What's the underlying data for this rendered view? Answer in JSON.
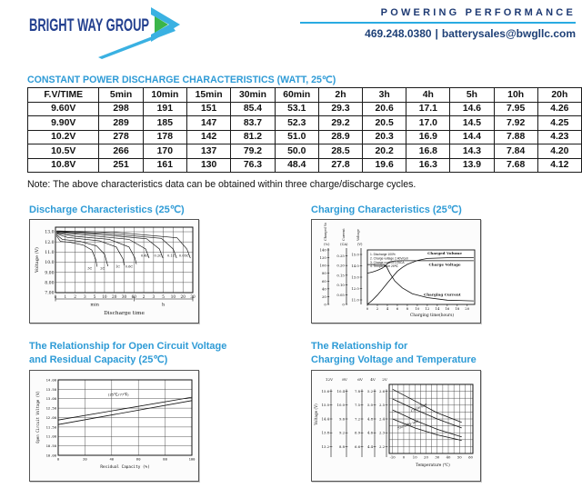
{
  "header": {
    "logo_text": "BRIGHT WAY GROUP",
    "tagline": "POWERING PERFORMANCE",
    "phone": "469.248.0380",
    "separator": "|",
    "email": "batterysales@bwgllc.com",
    "colors": {
      "navy": "#23408f",
      "cyan": "#29abe2",
      "green": "#3bb54a",
      "title_blue": "#2e9bd6"
    }
  },
  "table": {
    "title": "CONSTANT POWER DISCHARGE CHARACTERISTICS (WATT, 25℃)",
    "headers": [
      "F.V/TIME",
      "5min",
      "10min",
      "15min",
      "30min",
      "60min",
      "2h",
      "3h",
      "4h",
      "5h",
      "10h",
      "20h"
    ],
    "rows": [
      [
        "9.60V",
        "298",
        "191",
        "151",
        "85.4",
        "53.1",
        "29.3",
        "20.6",
        "17.1",
        "14.6",
        "7.95",
        "4.26"
      ],
      [
        "9.90V",
        "289",
        "185",
        "147",
        "83.7",
        "52.3",
        "29.2",
        "20.5",
        "17.0",
        "14.5",
        "7.92",
        "4.25"
      ],
      [
        "10.2V",
        "278",
        "178",
        "142",
        "81.2",
        "51.0",
        "28.9",
        "20.3",
        "16.9",
        "14.4",
        "7.88",
        "4.23"
      ],
      [
        "10.5V",
        "266",
        "170",
        "137",
        "79.2",
        "50.0",
        "28.5",
        "20.2",
        "16.8",
        "14.3",
        "7.84",
        "4.20"
      ],
      [
        "10.8V",
        "251",
        "161",
        "130",
        "76.3",
        "48.4",
        "27.8",
        "19.6",
        "16.3",
        "13.9",
        "7.68",
        "4.12"
      ]
    ],
    "note": "Note: The above characteristics data can be obtained within three charge/discharge cycles."
  },
  "chart_data": [
    {
      "id": "discharge",
      "type": "line",
      "title": "Discharge Characteristics (25℃)",
      "ylabel": "Voltage (V)",
      "xlabel": "Discharge time",
      "ylim": [
        7.0,
        13.45
      ],
      "y_values": [
        13,
        12,
        11,
        10,
        9,
        8,
        7
      ],
      "y_ticks": [
        "13.0",
        "12.0",
        "11.0",
        "10.0",
        "9.00",
        "8.00",
        "7.00"
      ],
      "x_ticks": [
        "0",
        "1",
        "2",
        "3",
        "5",
        "10",
        "20",
        "30",
        "60",
        "2",
        "3",
        "5",
        "10",
        "20",
        "30"
      ],
      "x_unit_groups": [
        {
          "label": "min",
          "from": 0,
          "to": 8
        },
        {
          "label": "h",
          "from": 8,
          "to": 14
        }
      ],
      "series": [
        {
          "name": "3C",
          "points": [
            [
              0.1,
              12.6
            ],
            [
              0.5,
              12.05
            ],
            [
              1.5,
              11.95
            ],
            [
              2.8,
              11.7
            ],
            [
              3.7,
              11.2
            ],
            [
              4.1,
              10.3
            ],
            [
              4.25,
              9.55
            ]
          ],
          "label_at": [
            3.5,
            9.3
          ]
        },
        {
          "name": "2C",
          "points": [
            [
              0.1,
              12.7
            ],
            [
              0.7,
              12.25
            ],
            [
              2.5,
              12.05
            ],
            [
              4.2,
              11.6
            ],
            [
              5.0,
              10.8
            ],
            [
              5.35,
              9.6
            ]
          ],
          "label_at": [
            4.8,
            9.3
          ]
        },
        {
          "name": "1C",
          "points": [
            [
              0.1,
              12.8
            ],
            [
              1.2,
              12.45
            ],
            [
              4.5,
              12.1
            ],
            [
              6.2,
              11.5
            ],
            [
              6.9,
              10.3
            ],
            [
              7.0,
              9.7
            ]
          ],
          "label_at": [
            6.35,
            9.45
          ]
        },
        {
          "name": "0.6C",
          "points": [
            [
              0.1,
              12.88
            ],
            [
              2,
              12.55
            ],
            [
              5.5,
              12.25
            ],
            [
              7.5,
              11.5
            ],
            [
              8.1,
              10.4
            ],
            [
              8.25,
              9.8
            ]
          ],
          "label_at": [
            7.5,
            9.45
          ]
        },
        {
          "name": "0.4C",
          "points": [
            [
              0.1,
              12.92
            ],
            [
              3,
              12.68
            ],
            [
              7.5,
              12.25
            ],
            [
              9.2,
              11.3
            ],
            [
              9.55,
              10.4
            ]
          ],
          "label_at": [
            9.1,
            10.52
          ]
        },
        {
          "name": "0.2C",
          "points": [
            [
              0.1,
              12.98
            ],
            [
              4,
              12.78
            ],
            [
              9.3,
              12.3
            ],
            [
              10.6,
              11.3
            ],
            [
              10.95,
              10.4
            ]
          ],
          "label_at": [
            10.45,
            10.52
          ]
        },
        {
          "name": "0.1C",
          "points": [
            [
              0.1,
              13.03
            ],
            [
              5,
              12.85
            ],
            [
              10.8,
              12.35
            ],
            [
              12.0,
              11.3
            ],
            [
              12.35,
              10.4
            ]
          ],
          "label_at": [
            11.8,
            10.52
          ]
        },
        {
          "name": "0.05C",
          "points": [
            [
              0.1,
              13.08
            ],
            [
              6,
              12.95
            ],
            [
              12.4,
              12.4
            ],
            [
              13.4,
              11.3
            ],
            [
              13.75,
              10.4
            ]
          ],
          "label_at": [
            13.1,
            10.52
          ]
        }
      ]
    },
    {
      "id": "charging",
      "type": "line",
      "title": "Charging Characteristics (25℃)",
      "xlabel": "Charging time(hours)",
      "x_ticks": [
        0,
        2,
        4,
        6,
        8,
        10,
        12,
        14,
        16,
        18,
        20
      ],
      "xlim": [
        0,
        21.5
      ],
      "axes": [
        {
          "label": "Charged Volume",
          "unit": "(%)",
          "scale": "pct",
          "ticks": [
            0,
            20,
            40,
            60,
            80,
            100,
            120,
            140
          ],
          "tick_labels": [
            "0",
            "20",
            "40",
            "60",
            "80",
            "100",
            "120",
            "140"
          ]
        },
        {
          "label": "Current",
          "unit": "(CA)",
          "scale": "ca",
          "ticks": [
            0,
            0.05,
            0.1,
            0.15,
            0.2,
            0.25
          ],
          "tick_labels": [
            "0",
            "0.05",
            "0.10",
            "0.15",
            "0.20",
            "0.25"
          ]
        },
        {
          "label": "Voltage",
          "unit": "(V)",
          "scale": "volt",
          "ticks": [
            11,
            12,
            13,
            14,
            15
          ],
          "tick_labels": [
            "11.0",
            "12.0",
            "13.0",
            "14.0",
            "15.0"
          ]
        }
      ],
      "notes": [
        "1. Discharge 100%",
        "2. Charge voltage 2.40V/cell",
        "3. Charge current 0.25CA",
        "4. Temperature 25℃"
      ],
      "series": [
        {
          "name": "Charged Volume",
          "scale": "pct",
          "points": [
            [
              0,
              0
            ],
            [
              1,
              11
            ],
            [
              2,
              24
            ],
            [
              3,
              39
            ],
            [
              4,
              55
            ],
            [
              5,
              70
            ],
            [
              6,
              85
            ],
            [
              7,
              95
            ],
            [
              8,
              103
            ],
            [
              10,
              113
            ],
            [
              12,
              118
            ],
            [
              16,
              120
            ],
            [
              21.3,
              120
            ]
          ],
          "label_at": [
            15.5,
            128
          ]
        },
        {
          "name": "Charge Voltage",
          "scale": "volt",
          "points": [
            [
              0,
              13.35
            ],
            [
              1,
              13.45
            ],
            [
              2,
              13.6
            ],
            [
              3,
              13.8
            ],
            [
              3.8,
              14.1
            ],
            [
              4.5,
              14.35
            ],
            [
              5.5,
              14.43
            ],
            [
              7,
              14.45
            ],
            [
              21.3,
              14.45
            ]
          ],
          "label_at": [
            15.5,
            14.0
          ]
        },
        {
          "name": "Charging Current",
          "scale": "ca",
          "points": [
            [
              0,
              0.205
            ],
            [
              3.3,
              0.205
            ],
            [
              3.8,
              0.195
            ],
            [
              4.5,
              0.16
            ],
            [
              5.5,
              0.12
            ],
            [
              7,
              0.085
            ],
            [
              9,
              0.055
            ],
            [
              12,
              0.035
            ],
            [
              16,
              0.022
            ],
            [
              21.3,
              0.018
            ]
          ],
          "label_at": [
            15,
            0.045
          ]
        }
      ]
    },
    {
      "id": "ocv-residual",
      "type": "line",
      "title_line1": "The Relationship for Open Circuit Voltage",
      "title_line2": "and Residual Capacity (25℃)",
      "ylabel": "Open Circuit Voltage (V)",
      "xlabel": "Residual Capacity (%)",
      "ylim": [
        10.0,
        14.0
      ],
      "y_values": [
        14,
        13.5,
        13,
        12.5,
        12,
        11.5,
        11,
        10.5,
        10
      ],
      "y_ticks": [
        "14.00",
        "13.50",
        "13.00",
        "12.50",
        "12.00",
        "11.50",
        "11.00",
        "10.50",
        "10.00"
      ],
      "x_ticks": [
        0,
        20,
        40,
        60,
        80,
        100
      ],
      "annotation": "(25℃/77℉)",
      "annotation_at": [
        45,
        13.15
      ],
      "series": [
        {
          "name": "upper-line",
          "points": [
            [
              0,
              11.87
            ],
            [
              100,
              13.08
            ]
          ]
        },
        {
          "name": "lower-line",
          "points": [
            [
              0,
              11.63
            ],
            [
              100,
              12.9
            ]
          ]
        }
      ]
    },
    {
      "id": "charge-voltage-temp",
      "type": "line",
      "title_line1": "The Relationship for",
      "title_line2": "Charging Voltage and Temperature",
      "ylabel": "Voltage (V)",
      "xlabel": "Temperature (℃)",
      "ylim_2v": [
        2.15,
        2.65
      ],
      "xlim": [
        -13,
        62
      ],
      "x_ticks": [
        -10,
        0,
        10,
        20,
        30,
        40,
        50,
        60
      ],
      "scale_map": [
        2.6,
        2.5,
        2.4,
        2.3,
        2.2
      ],
      "scales": [
        {
          "name": "12V",
          "ticks": [
            "15.6",
            "15.0",
            "14.4",
            "13.8",
            "13.2"
          ]
        },
        {
          "name": "8V",
          "ticks": [
            "10.4",
            "10.0",
            "9.6",
            "9.2",
            "8.8"
          ]
        },
        {
          "name": "6V",
          "ticks": [
            "7.8",
            "7.5",
            "7.2",
            "6.9",
            "6.6"
          ]
        },
        {
          "name": "4V",
          "ticks": [
            "5.2",
            "5.0",
            "4.8",
            "4.6",
            "4.4"
          ]
        },
        {
          "name": "2V",
          "ticks": [
            "2.6",
            "2.5",
            "2.4",
            "2.3",
            "2.2"
          ]
        }
      ],
      "bands": [
        {
          "label": "Cycle use",
          "label_at": [
            14,
            2.475
          ],
          "label_angle": -24,
          "upper": [
            [
              -10,
              2.615
            ],
            [
              10,
              2.53
            ],
            [
              30,
              2.445
            ],
            [
              52,
              2.375
            ]
          ],
          "lower": [
            [
              -10,
              2.545
            ],
            [
              10,
              2.47
            ],
            [
              30,
              2.4
            ],
            [
              52,
              2.335
            ]
          ]
        },
        {
          "label": "Standby use",
          "label_at": [
            4,
            2.352
          ],
          "label_angle": -20,
          "upper": [
            [
              -10,
              2.465
            ],
            [
              10,
              2.39
            ],
            [
              30,
              2.325
            ],
            [
              52,
              2.27
            ]
          ],
          "lower": [
            [
              -10,
              2.4
            ],
            [
              10,
              2.335
            ],
            [
              30,
              2.285
            ],
            [
              52,
              2.245
            ]
          ]
        }
      ]
    }
  ]
}
